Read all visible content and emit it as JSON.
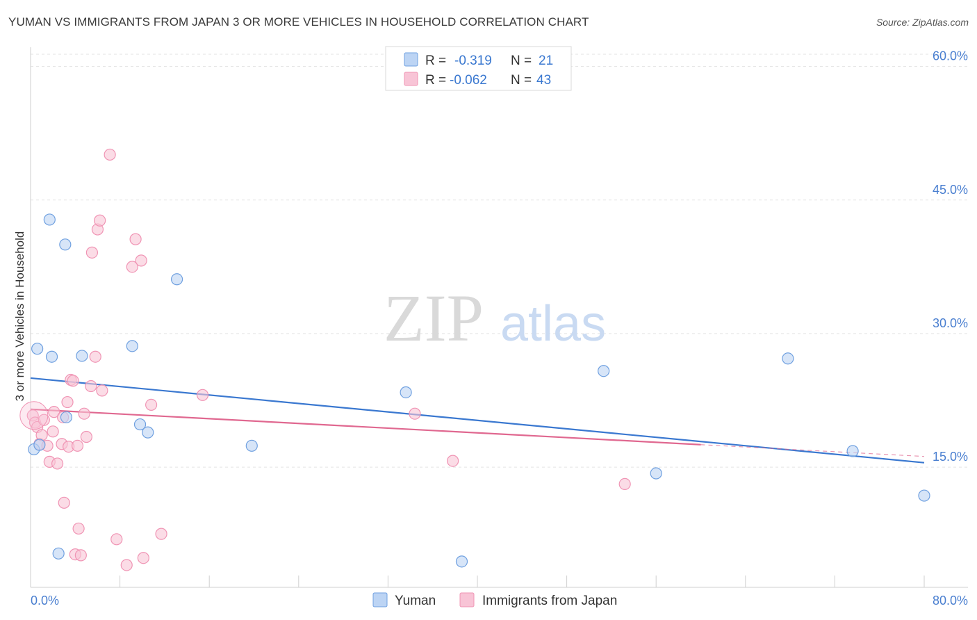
{
  "title": "YUMAN VS IMMIGRANTS FROM JAPAN 3 OR MORE VEHICLES IN HOUSEHOLD CORRELATION CHART",
  "source": "Source: ZipAtlas.com",
  "watermark": {
    "zip": "ZIP",
    "atlas": "atlas"
  },
  "chart_data": {
    "type": "scatter",
    "xlabel": "",
    "ylabel": "3 or more Vehicles in Household",
    "xlim": [
      0,
      80
    ],
    "ylim": [
      1.5,
      62
    ],
    "x_tick_labels": {
      "min": "0.0%",
      "max": "80.0%"
    },
    "y_ticks": [
      {
        "value": 15,
        "label": "15.0%"
      },
      {
        "value": 30,
        "label": "30.0%"
      },
      {
        "value": 45,
        "label": "45.0%"
      },
      {
        "value": 60,
        "label": "60.0%"
      }
    ],
    "grid": true,
    "legend_position": "top-center",
    "stats": [
      {
        "r_label": "R =",
        "r": "-0.319",
        "n_label": "N =",
        "n": "21"
      },
      {
        "r_label": "R =",
        "r": "-0.062",
        "n_label": "N =",
        "n": "43"
      }
    ],
    "series": [
      {
        "name": "Yuman",
        "color": "#6fa0e0",
        "fill": "#bcd4f4",
        "line_color": "#3a78d0",
        "trend": {
          "x0": 0,
          "y0": 25.0,
          "x1": 80,
          "y1": 15.5,
          "solid_until": 80
        },
        "points": [
          [
            0.3,
            17.0
          ],
          [
            0.6,
            28.3
          ],
          [
            1.7,
            42.8
          ],
          [
            1.9,
            27.4
          ],
          [
            2.5,
            5.3
          ],
          [
            3.1,
            40.0
          ],
          [
            3.2,
            20.6
          ],
          [
            4.6,
            27.5
          ],
          [
            9.1,
            28.6
          ],
          [
            9.8,
            19.8
          ],
          [
            10.5,
            18.9
          ],
          [
            13.1,
            36.1
          ],
          [
            19.8,
            17.4
          ],
          [
            33.6,
            23.4
          ],
          [
            38.6,
            4.4
          ],
          [
            51.3,
            25.8
          ],
          [
            56.0,
            14.3
          ],
          [
            67.8,
            27.2
          ],
          [
            73.6,
            16.8
          ],
          [
            80.0,
            11.8
          ],
          [
            0.8,
            17.5
          ]
        ]
      },
      {
        "name": "Immigrants from Japan",
        "color": "#f094b4",
        "fill": "#f8c4d6",
        "line_color": "#e06890",
        "trend": {
          "x0": 0,
          "y0": 21.5,
          "x1": 80,
          "y1": 16.2,
          "solid_until": 60
        },
        "points": [
          [
            0.2,
            20.8
          ],
          [
            0.4,
            20.0
          ],
          [
            0.6,
            19.5
          ],
          [
            0.8,
            17.6
          ],
          [
            1.0,
            18.6
          ],
          [
            1.2,
            20.3
          ],
          [
            1.5,
            17.4
          ],
          [
            1.7,
            15.6
          ],
          [
            2.0,
            19.0
          ],
          [
            2.1,
            21.2
          ],
          [
            2.4,
            15.4
          ],
          [
            2.8,
            17.6
          ],
          [
            2.9,
            20.6
          ],
          [
            3.0,
            11.0
          ],
          [
            3.3,
            22.3
          ],
          [
            3.4,
            17.3
          ],
          [
            3.6,
            24.8
          ],
          [
            3.8,
            24.7
          ],
          [
            4.0,
            5.2
          ],
          [
            4.3,
            8.1
          ],
          [
            4.5,
            5.1
          ],
          [
            4.2,
            17.4
          ],
          [
            4.8,
            21.0
          ],
          [
            5.0,
            18.4
          ],
          [
            5.4,
            24.1
          ],
          [
            5.5,
            39.1
          ],
          [
            5.8,
            27.4
          ],
          [
            6.0,
            41.7
          ],
          [
            6.2,
            42.7
          ],
          [
            6.4,
            23.6
          ],
          [
            7.1,
            50.1
          ],
          [
            7.7,
            6.9
          ],
          [
            8.6,
            4.0
          ],
          [
            9.1,
            37.5
          ],
          [
            9.4,
            40.6
          ],
          [
            9.9,
            38.2
          ],
          [
            10.1,
            4.8
          ],
          [
            10.8,
            22.0
          ],
          [
            11.7,
            7.5
          ],
          [
            15.4,
            23.1
          ],
          [
            34.4,
            21.0
          ],
          [
            37.8,
            15.7
          ],
          [
            53.2,
            13.1
          ]
        ]
      }
    ]
  }
}
